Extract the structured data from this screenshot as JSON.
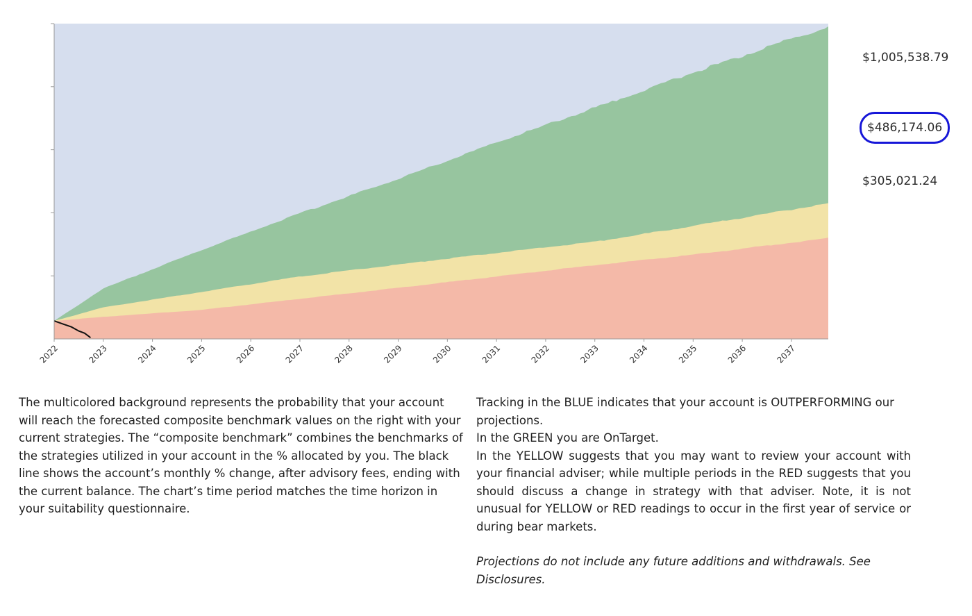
{
  "chart_data": {
    "type": "area",
    "title": "",
    "xlabel": "",
    "ylabel": "",
    "x_ticks": [
      "2022",
      "2023",
      "2024",
      "2025",
      "2026",
      "2027",
      "2028",
      "2029",
      "2030",
      "2031",
      "2032",
      "2033",
      "2034",
      "2035",
      "2036",
      "2037"
    ],
    "x_range": [
      2022,
      2037.75
    ],
    "y_range": [
      0,
      1000000
    ],
    "y_tick_count": 5,
    "start_value": 57000,
    "series": [
      {
        "name": "Outperforming (blue)",
        "color": "#d6deee",
        "description": "background above the green band"
      },
      {
        "name": "On target (green)",
        "color": "#97c59f",
        "x": [
          2022,
          2023,
          2025,
          2027,
          2029,
          2031,
          2033,
          2035,
          2037.75
        ],
        "upper": [
          57000,
          160000,
          282000,
          398000,
          508000,
          623000,
          733000,
          845000,
          990000
        ]
      },
      {
        "name": "Review (yellow)",
        "color": "#f2e3a7",
        "x": [
          2022,
          2023,
          2025,
          2027,
          2029,
          2031,
          2033,
          2035,
          2037.75
        ],
        "upper": [
          57000,
          100000,
          149000,
          198000,
          236000,
          273000,
          308000,
          358000,
          430000
        ]
      },
      {
        "name": "Discuss change (red)",
        "color": "#f4b9a8",
        "x": [
          2022,
          2023,
          2025,
          2027,
          2029,
          2031,
          2033,
          2035,
          2037.75
        ],
        "upper": [
          57000,
          70000,
          92000,
          127000,
          162000,
          198000,
          234000,
          267000,
          320000
        ]
      },
      {
        "name": "Account balance",
        "color": "#111111",
        "x": [
          2022,
          2022.2,
          2022.35,
          2022.5,
          2022.62,
          2022.74
        ],
        "values": [
          57000,
          46000,
          38000,
          25000,
          18000,
          4000
        ]
      }
    ],
    "value_labels": {
      "top": "$1,005,538.79",
      "middle": "$486,174.06",
      "bottom": "$305,021.24"
    }
  },
  "description": {
    "left": "The multicolored background represents the probability that your account will reach the forecasted composite benchmark values on the right with your current strategies. The “composite benchmark” combines the benchmarks of the strategies utilized in your account in the % allocated by you. The black line shows the account’s monthly % change, after advisory fees, ending with the current balance. The chart’s time period matches the time horizon in your suitability questionnaire.",
    "right_blue": "Tracking in the BLUE indicates that your account is OUTPERFORMING our projections.",
    "right_green": "In the GREEN you are OnTarget.",
    "right_yellow": "In the YELLOW suggests that you may want to review your account with your financial adviser; while multiple periods in the RED suggests that you should discuss a change in strategy with that adviser. Note, it is not unusual for YELLOW or RED readings to occur in the first year of service or during bear markets.",
    "note": "Projections do not include any future additions and withdrawals. See Disclosures."
  }
}
